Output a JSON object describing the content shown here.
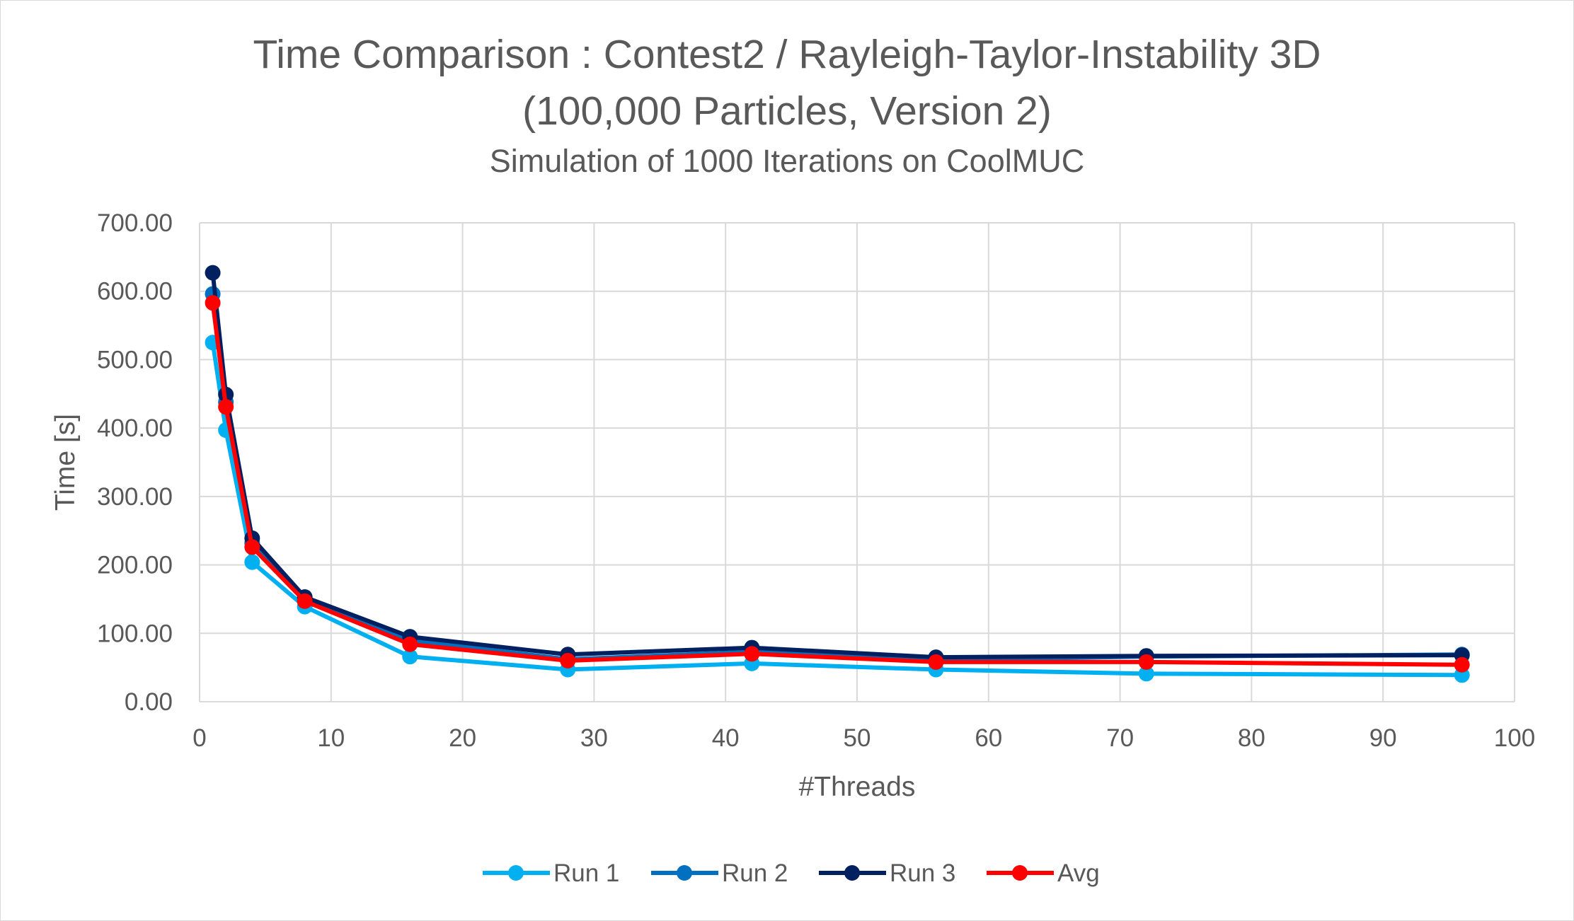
{
  "chart_data": {
    "type": "line",
    "title": "Time Comparison : Contest2 / Rayleigh-Taylor-Instability 3D",
    "title_line2": "(100,000 Particles, Version 2)",
    "subtitle": "Simulation of 1000 Iterations on CoolMUC",
    "xlabel": "#Threads",
    "ylabel": "Time [s]",
    "xlim": [
      0,
      100
    ],
    "ylim": [
      0,
      700
    ],
    "x_ticks": [
      "0",
      "10",
      "20",
      "30",
      "40",
      "50",
      "60",
      "70",
      "80",
      "90",
      "100"
    ],
    "y_ticks": [
      "0.00",
      "100.00",
      "200.00",
      "300.00",
      "400.00",
      "500.00",
      "600.00",
      "700.00"
    ],
    "grid": true,
    "legend_position": "bottom",
    "x": [
      1,
      2,
      4,
      8,
      16,
      28,
      42,
      56,
      72,
      96
    ],
    "series": [
      {
        "name": "Run 1",
        "color": "#00b0f0",
        "values": [
          525,
          397,
          204,
          139,
          66,
          47,
          56,
          47,
          41,
          39
        ]
      },
      {
        "name": "Run 2",
        "color": "#0070c0",
        "values": [
          596,
          438,
          232,
          148,
          90,
          62,
          73,
          61,
          66,
          69
        ]
      },
      {
        "name": "Run 3",
        "color": "#002060",
        "values": [
          627,
          449,
          239,
          153,
          95,
          69,
          79,
          65,
          67,
          68
        ]
      },
      {
        "name": "Avg",
        "color": "#ff0000",
        "values": [
          583,
          431,
          226,
          147,
          84,
          60,
          70,
          58,
          58,
          54
        ]
      }
    ]
  }
}
